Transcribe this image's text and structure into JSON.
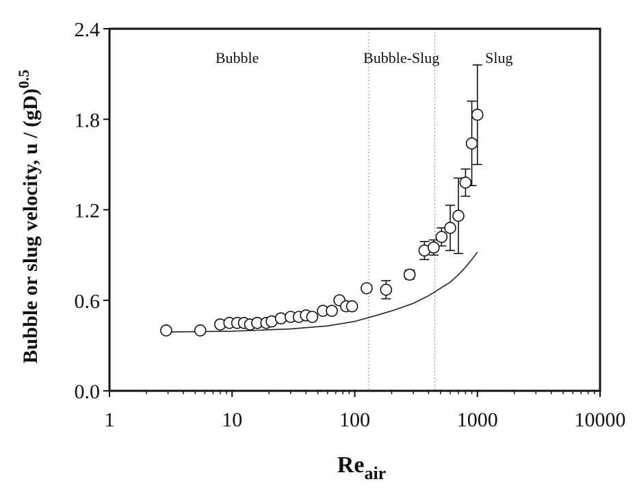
{
  "chart_data": {
    "type": "scatter",
    "x_scale": "log",
    "xlim": [
      1,
      10000
    ],
    "ylim": [
      0.0,
      2.4
    ],
    "x_ticks": [
      "1",
      "10",
      "100",
      "1000",
      "10000"
    ],
    "x_tick_values": [
      1,
      10,
      100,
      1000,
      10000
    ],
    "y_ticks": [
      "0.0",
      "0.6",
      "1.2",
      "1.8",
      "2.4"
    ],
    "y_tick_values": [
      0.0,
      0.6,
      1.2,
      1.8,
      2.4
    ],
    "ylabel": "Bubble or slug velocity, u / (gD)",
    "ylabel_superscript": "0.5",
    "xlabel": "Re",
    "xlabel_subscript": "air",
    "regions": [
      {
        "label": "Bubble",
        "x_center": 11
      },
      {
        "label": "Bubble-Slug",
        "x_center": 240
      },
      {
        "label": "Slug",
        "x_center": 1500
      }
    ],
    "region_boundaries": [
      130,
      450
    ],
    "series": [
      {
        "type": "scatter",
        "marker": "open-circle",
        "points": [
          {
            "x": 2.9,
            "y": 0.4
          },
          {
            "x": 5.5,
            "y": 0.4
          },
          {
            "x": 8.0,
            "y": 0.44
          },
          {
            "x": 9.5,
            "y": 0.45
          },
          {
            "x": 11.0,
            "y": 0.45
          },
          {
            "x": 12.5,
            "y": 0.45
          },
          {
            "x": 14.0,
            "y": 0.44
          },
          {
            "x": 16.0,
            "y": 0.45
          },
          {
            "x": 19.0,
            "y": 0.45
          },
          {
            "x": 21.0,
            "y": 0.46
          },
          {
            "x": 25.0,
            "y": 0.48
          },
          {
            "x": 30.0,
            "y": 0.49
          },
          {
            "x": 35.0,
            "y": 0.49
          },
          {
            "x": 40.0,
            "y": 0.5
          },
          {
            "x": 45.0,
            "y": 0.49
          },
          {
            "x": 55.0,
            "y": 0.53
          },
          {
            "x": 65.0,
            "y": 0.53
          },
          {
            "x": 75.0,
            "y": 0.6
          },
          {
            "x": 85.0,
            "y": 0.56
          },
          {
            "x": 95.0,
            "y": 0.56
          },
          {
            "x": 125.0,
            "y": 0.68
          },
          {
            "x": 180.0,
            "y": 0.67,
            "err": 0.06
          },
          {
            "x": 280.0,
            "y": 0.77,
            "err": 0.03
          },
          {
            "x": 370.0,
            "y": 0.93,
            "err": 0.06
          },
          {
            "x": 440.0,
            "y": 0.95,
            "err": 0.05
          },
          {
            "x": 510.0,
            "y": 1.02,
            "err": 0.06
          },
          {
            "x": 600.0,
            "y": 1.08,
            "err": 0.15
          },
          {
            "x": 700.0,
            "y": 1.16,
            "err": 0.25
          },
          {
            "x": 800.0,
            "y": 1.38,
            "err": 0.09
          },
          {
            "x": 900.0,
            "y": 1.64,
            "err": 0.28
          },
          {
            "x": 1000.0,
            "y": 1.83,
            "err": 0.33
          }
        ]
      },
      {
        "type": "line",
        "points": [
          {
            "x": 3,
            "y": 0.39
          },
          {
            "x": 10,
            "y": 0.395
          },
          {
            "x": 30,
            "y": 0.41
          },
          {
            "x": 60,
            "y": 0.43
          },
          {
            "x": 100,
            "y": 0.46
          },
          {
            "x": 150,
            "y": 0.5
          },
          {
            "x": 200,
            "y": 0.53
          },
          {
            "x": 300,
            "y": 0.58
          },
          {
            "x": 400,
            "y": 0.63
          },
          {
            "x": 500,
            "y": 0.68
          },
          {
            "x": 600,
            "y": 0.72
          },
          {
            "x": 700,
            "y": 0.77
          },
          {
            "x": 800,
            "y": 0.82
          },
          {
            "x": 900,
            "y": 0.87
          },
          {
            "x": 1000,
            "y": 0.92
          }
        ]
      }
    ]
  }
}
